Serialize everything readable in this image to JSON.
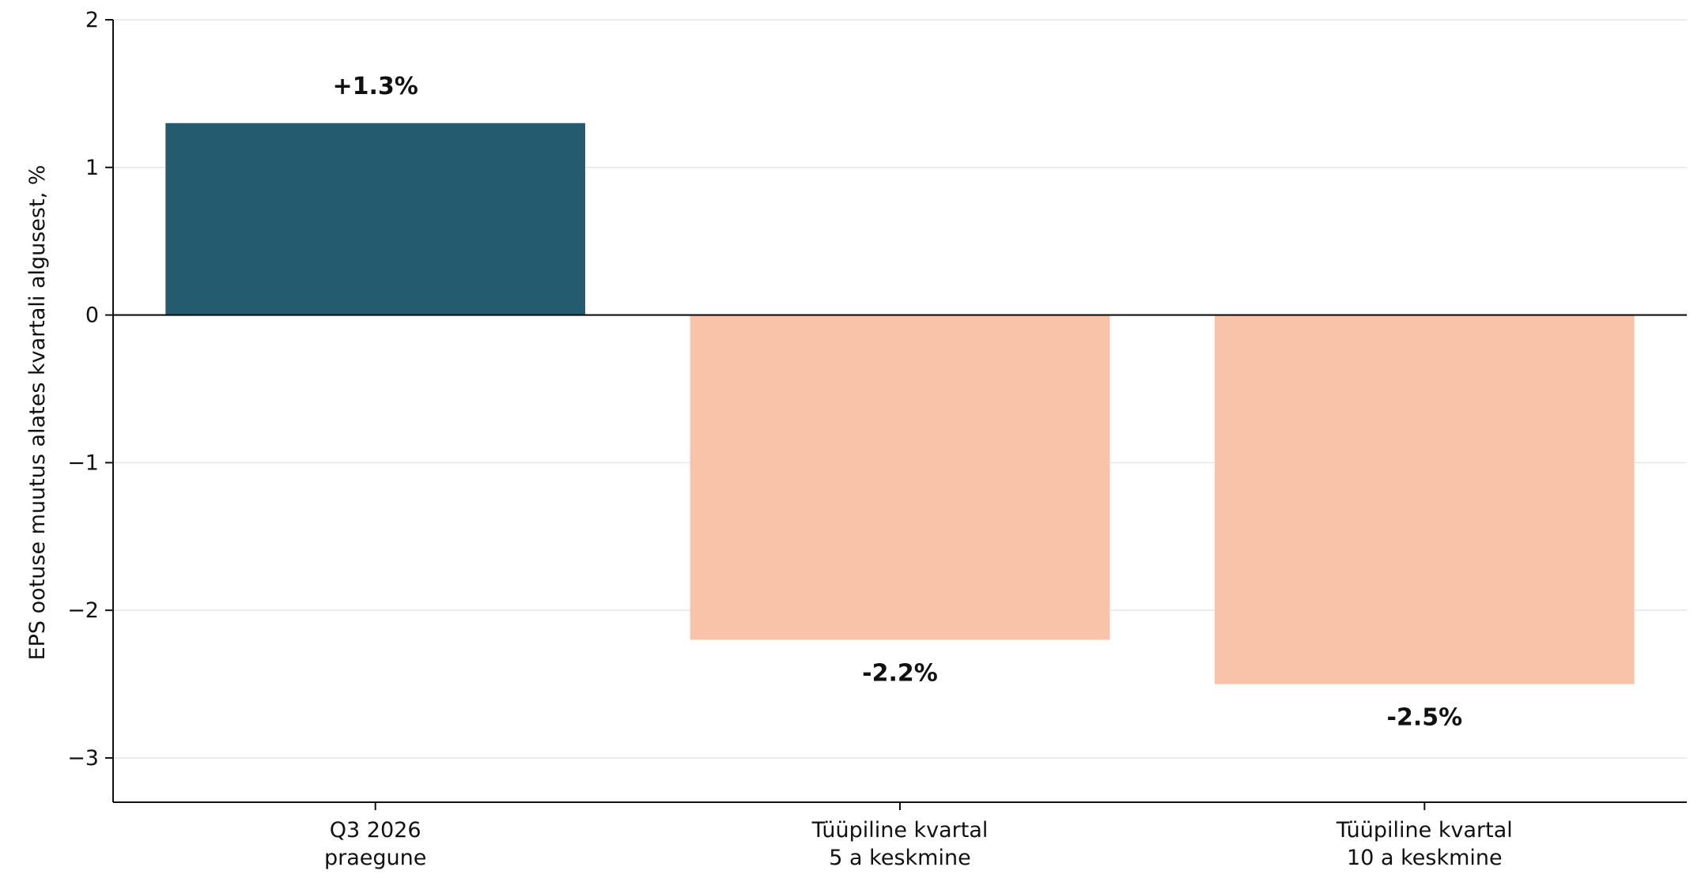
{
  "chart_data": {
    "type": "bar",
    "categories": [
      [
        "Q3 2026",
        "praegune"
      ],
      [
        "Tüüpiline kvartal",
        "5 a keskmine"
      ],
      [
        "Tüüpiline kvartal",
        "10 a keskmine"
      ]
    ],
    "values": [
      1.3,
      -2.2,
      -2.5
    ],
    "data_labels": [
      "+1.3%",
      "-2.2%",
      "-2.5%"
    ],
    "colors": [
      "#255b6e",
      "#f9c3aa",
      "#f9c3aa"
    ],
    "title": "",
    "xlabel": "",
    "ylabel": "EPS ootuse muutus alates kvartali algusest, %",
    "ylim": [
      -3.3,
      2
    ],
    "yticks": [
      2,
      1,
      0,
      -1,
      -2,
      -3
    ],
    "ytick_labels": [
      "2",
      "1",
      "0",
      "−1",
      "−2",
      "−3"
    ],
    "grid": "horizontal",
    "zero_line": true
  }
}
